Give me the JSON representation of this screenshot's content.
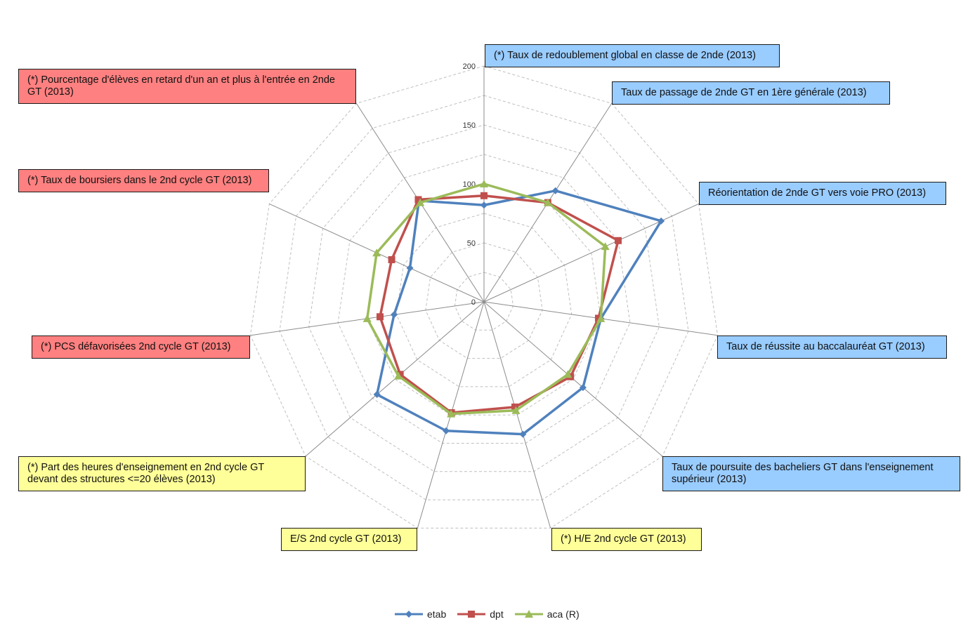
{
  "chart_data": {
    "type": "radar",
    "scale": {
      "min": 0,
      "max": 200,
      "ticks": [
        0,
        50,
        100,
        150,
        200
      ]
    },
    "grid": true,
    "legend_position": "bottom",
    "axes": [
      {
        "label": "(*) Taux de redoublement global en classe de 2nde (2013)",
        "group": "blue"
      },
      {
        "label": "Taux de passage de 2nde GT en 1ère générale (2013)",
        "group": "blue"
      },
      {
        "label": "Réorientation de 2nde GT vers voie PRO (2013)",
        "group": "blue"
      },
      {
        "label": "Taux de réussite au baccalauréat GT (2013)",
        "group": "blue"
      },
      {
        "label": "Taux de poursuite des bacheliers GT dans l'enseignement supérieur (2013)",
        "group": "blue"
      },
      {
        "label": "(*) H/E 2nd cycle GT (2013)",
        "group": "yellow"
      },
      {
        "label": "E/S 2nd cycle GT (2013)",
        "group": "yellow"
      },
      {
        "label": "(*) Part des heures d'enseignement en 2nd cycle GT devant des structures <=20 élèves (2013)",
        "group": "yellow"
      },
      {
        "label": "(*) PCS défavorisées 2nd cycle GT (2013)",
        "group": "red"
      },
      {
        "label": "(*) Taux de boursiers dans le 2nd cycle GT (2013)",
        "group": "red"
      },
      {
        "label": "(*) Pourcentage d'élèves en retard d'un an et plus à l'entrée en 2nde GT (2013)",
        "group": "red"
      }
    ],
    "series": [
      {
        "name": "etab",
        "color": "#4f81bd",
        "marker": "diamond",
        "values": [
          82,
          112,
          165,
          100,
          111,
          117,
          114,
          120,
          77,
          69,
          102
        ]
      },
      {
        "name": "dpt",
        "color": "#c0504d",
        "marker": "square",
        "values": [
          90,
          100,
          125,
          98,
          97,
          93,
          98,
          94,
          89,
          86,
          103
        ]
      },
      {
        "name": "aca (R)",
        "color": "#9bbb59",
        "marker": "triangle",
        "values": [
          100,
          100,
          113,
          100,
          94,
          96,
          99,
          96,
          100,
          100,
          100
        ]
      }
    ]
  },
  "colors": {
    "blue": "#99ccff",
    "yellow": "#ffff99",
    "red": "#ff8080"
  }
}
